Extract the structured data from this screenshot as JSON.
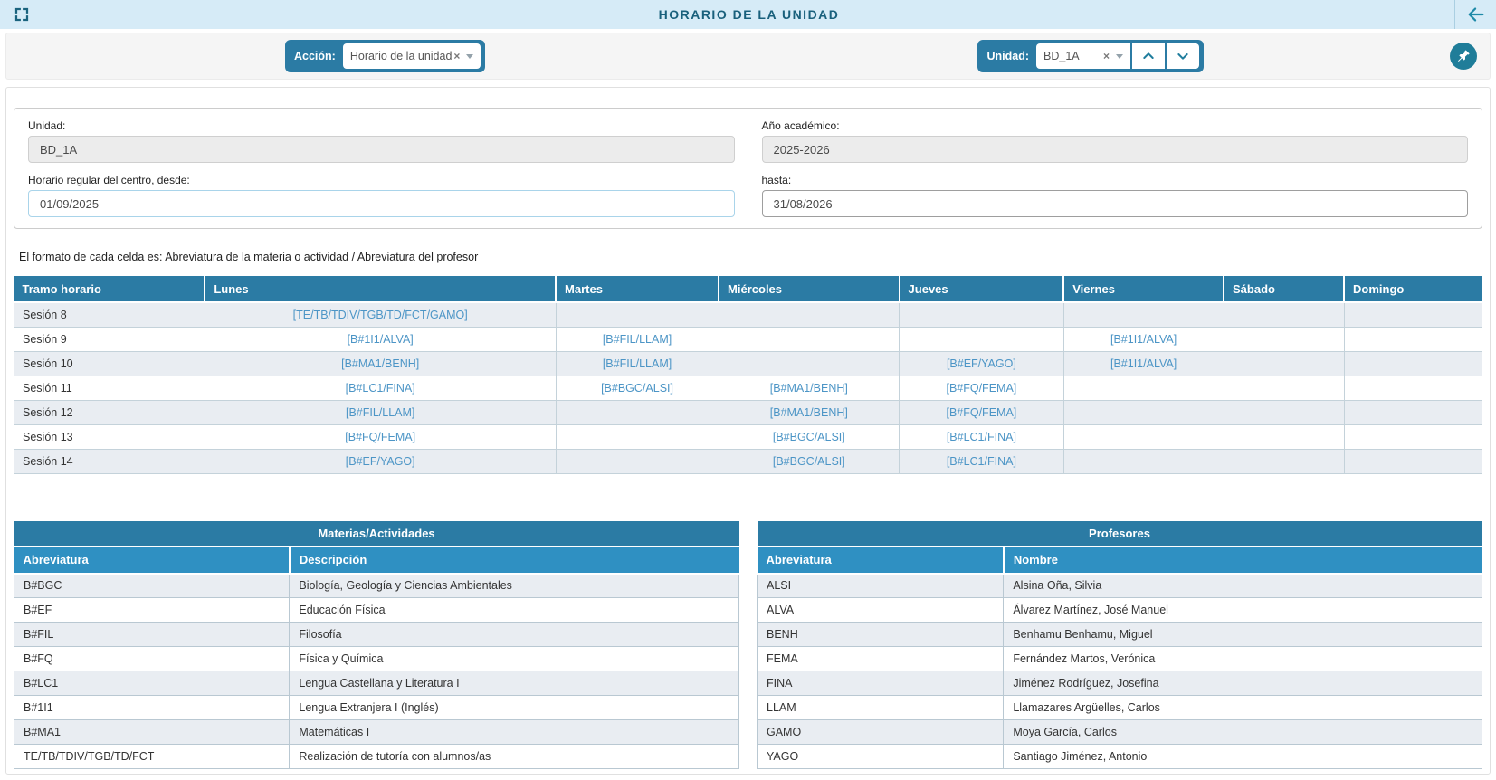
{
  "header": {
    "title": "HORARIO DE LA UNIDAD"
  },
  "toolbar": {
    "accion_label": "Acción:",
    "accion_value": "Horario de la unidad",
    "unidad_label": "Unidad:",
    "unidad_value": "BD_1A",
    "clear_symbol": "×"
  },
  "form": {
    "unidad": {
      "label": "Unidad:",
      "value": "BD_1A"
    },
    "anio": {
      "label": "Año académico:",
      "value": "2025-2026"
    },
    "desde": {
      "label": "Horario regular del centro, desde:",
      "value": "01/09/2025"
    },
    "hasta": {
      "label": "hasta:",
      "value": "31/08/2026"
    }
  },
  "format_note": "El formato de cada celda es: Abreviatura de la materia o actividad / Abreviatura del profesor",
  "schedule": {
    "columns": [
      "Tramo horario",
      "Lunes",
      "Martes",
      "Miércoles",
      "Jueves",
      "Viernes",
      "Sábado",
      "Domingo"
    ],
    "rows": [
      {
        "label": "Sesión 8",
        "cells": [
          "[TE/TB/TDIV/TGB/TD/FCT/GAMO]",
          "",
          "",
          "",
          "",
          "",
          ""
        ]
      },
      {
        "label": "Sesión 9",
        "cells": [
          "[B#1I1/ALVA]",
          "[B#FIL/LLAM]",
          "",
          "",
          "[B#1I1/ALVA]",
          "",
          ""
        ]
      },
      {
        "label": "Sesión 10",
        "cells": [
          "[B#MA1/BENH]",
          "[B#FIL/LLAM]",
          "",
          "[B#EF/YAGO]",
          "[B#1I1/ALVA]",
          "",
          ""
        ]
      },
      {
        "label": "Sesión 11",
        "cells": [
          "[B#LC1/FINA]",
          "[B#BGC/ALSI]",
          "[B#MA1/BENH]",
          "[B#FQ/FEMA]",
          "",
          "",
          ""
        ]
      },
      {
        "label": "Sesión 12",
        "cells": [
          "[B#FIL/LLAM]",
          "",
          "[B#MA1/BENH]",
          "[B#FQ/FEMA]",
          "",
          "",
          ""
        ]
      },
      {
        "label": "Sesión 13",
        "cells": [
          "[B#FQ/FEMA]",
          "",
          "[B#BGC/ALSI]",
          "[B#LC1/FINA]",
          "",
          "",
          ""
        ]
      },
      {
        "label": "Sesión 14",
        "cells": [
          "[B#EF/YAGO]",
          "",
          "[B#BGC/ALSI]",
          "[B#LC1/FINA]",
          "",
          "",
          ""
        ]
      }
    ]
  },
  "materias": {
    "title": "Materias/Actividades",
    "columns": [
      "Abreviatura",
      "Descripción"
    ],
    "rows": [
      [
        "B#BGC",
        "Biología, Geología y Ciencias Ambientales"
      ],
      [
        "B#EF",
        "Educación Física"
      ],
      [
        "B#FIL",
        "Filosofía"
      ],
      [
        "B#FQ",
        "Física y Química"
      ],
      [
        "B#LC1",
        "Lengua Castellana y Literatura I"
      ],
      [
        "B#1I1",
        "Lengua Extranjera I (Inglés)"
      ],
      [
        "B#MA1",
        "Matemáticas I"
      ],
      [
        "TE/TB/TDIV/TGB/TD/FCT",
        "Realización de tutoría con alumnos/as"
      ]
    ]
  },
  "profesores": {
    "title": "Profesores",
    "columns": [
      "Abreviatura",
      "Nombre"
    ],
    "rows": [
      [
        "ALSI",
        "Alsina Oña, Silvia"
      ],
      [
        "ALVA",
        "Álvarez Martínez, José Manuel"
      ],
      [
        "BENH",
        "Benhamu Benhamu, Miguel"
      ],
      [
        "FEMA",
        "Fernández Martos, Verónica"
      ],
      [
        "FINA",
        "Jiménez Rodríguez, Josefina"
      ],
      [
        "LLAM",
        "Llamazares Argüelles, Carlos"
      ],
      [
        "GAMO",
        "Moya García, Carlos"
      ],
      [
        "YAGO",
        "Santiago Jiménez, Antonio"
      ]
    ]
  },
  "icons": {
    "fullscreen": "corner-brackets",
    "back": "left-arrow",
    "clear": "×",
    "dropdown": "caret-down",
    "step_up": "chevron-up",
    "step_down": "chevron-down",
    "pin": "pushpin"
  },
  "colors": {
    "primary_blue": "#2b7ba4",
    "subheader_blue": "#2f90c2",
    "header_band": "#d6ebf7",
    "header_text": "#19607c",
    "link_cell": "#4c95c6",
    "row_alt": "#e9edf2",
    "teal_icon": "#1f8aa8"
  }
}
